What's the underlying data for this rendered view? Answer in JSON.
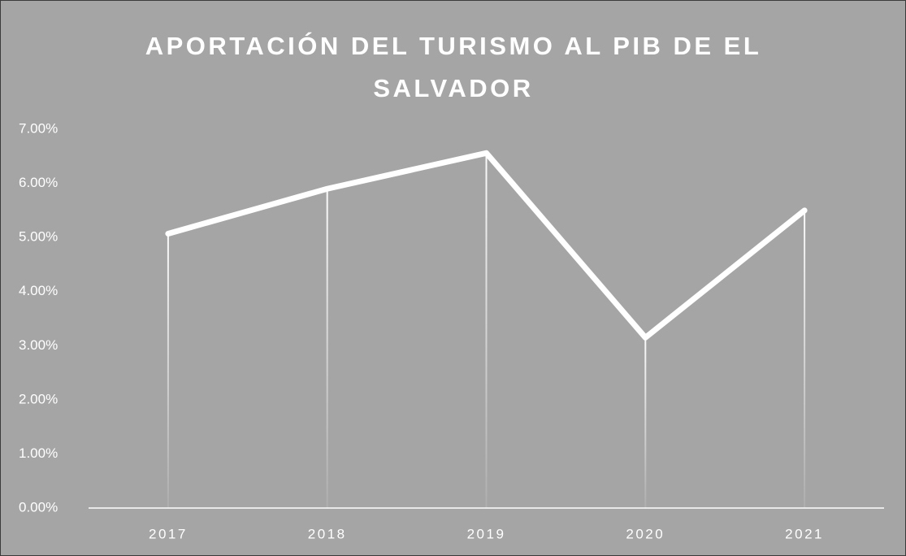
{
  "chart_data": {
    "type": "line",
    "title": "APORTACIÓN DEL TURISMO AL PIB DE EL SALVADOR",
    "categories": [
      "2017",
      "2018",
      "2019",
      "2020",
      "2021"
    ],
    "values": [
      5.07,
      5.9,
      6.56,
      3.15,
      5.5
    ],
    "color": "#ffffff",
    "ylim": [
      0,
      7
    ],
    "yticks": [
      {
        "value": 0,
        "label": "0.00%"
      },
      {
        "value": 1,
        "label": "1.00%"
      },
      {
        "value": 2,
        "label": "2.00%"
      },
      {
        "value": 3,
        "label": "3.00%"
      },
      {
        "value": 4,
        "label": "4.00%"
      },
      {
        "value": 5,
        "label": "5.00%"
      },
      {
        "value": 6,
        "label": "6.00%"
      },
      {
        "value": 7,
        "label": "7.00%"
      }
    ],
    "grid": false,
    "drop_lines": true
  }
}
